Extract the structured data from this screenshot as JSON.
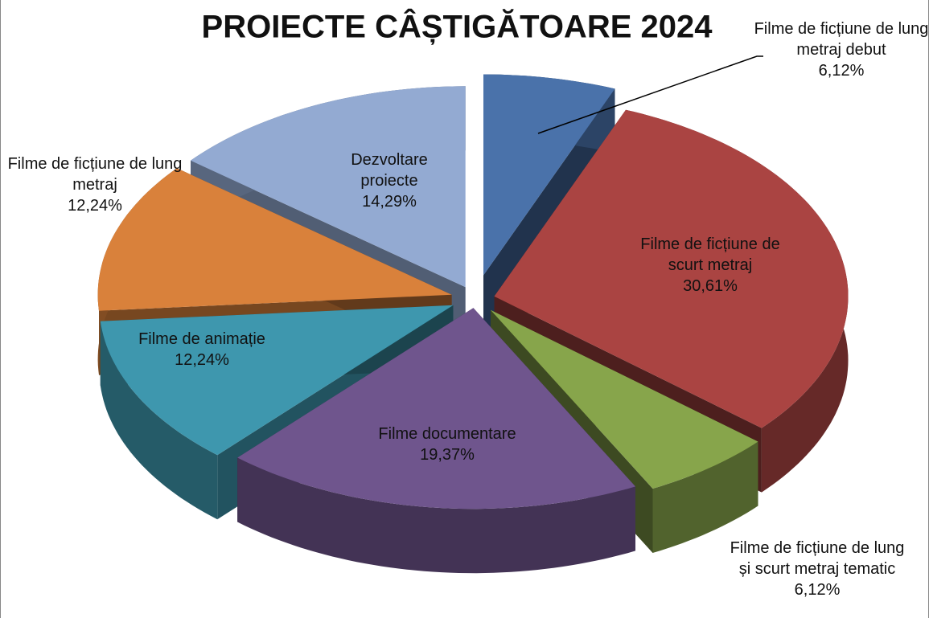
{
  "chart_data": {
    "type": "pie3d",
    "title": "PROIECTE CÂȘTIGĂTOARE 2024",
    "categories": [
      "Filme de ficțiune de lung metraj debut",
      "Filme de ficțiune de scurt metraj",
      "Filme de ficțiune de lung și scurt metraj tematic",
      "Filme documentare",
      "Filme de animație",
      "Filme de ficțiune de lung metraj",
      "Dezvoltare proiecte"
    ],
    "values": [
      6.12,
      30.61,
      6.12,
      19.37,
      12.24,
      12.24,
      14.29
    ],
    "value_labels": [
      "6,12%",
      "30,61%",
      "6,12%",
      "19,37%",
      "12,24%",
      "12,24%",
      "14,29%"
    ],
    "colors": [
      "#4a72aa",
      "#aa4442",
      "#87a54b",
      "#6f558d",
      "#3e97ae",
      "#d9813b",
      "#93aad2"
    ]
  }
}
